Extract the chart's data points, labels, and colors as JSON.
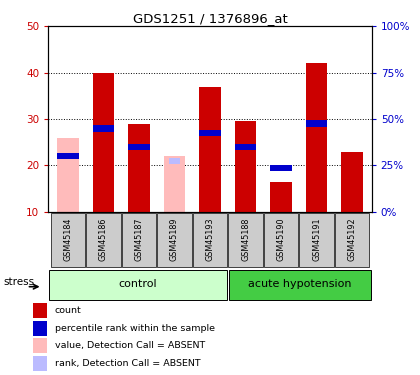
{
  "title": "GDS1251 / 1376896_at",
  "samples": [
    "GSM45184",
    "GSM45186",
    "GSM45187",
    "GSM45189",
    "GSM45193",
    "GSM45188",
    "GSM45190",
    "GSM45191",
    "GSM45192"
  ],
  "n_control": 5,
  "n_acute": 4,
  "red_bars": [
    null,
    40.0,
    29.0,
    null,
    37.0,
    29.5,
    16.5,
    42.0,
    23.0
  ],
  "blue_bars": [
    22.0,
    28.0,
    24.0,
    null,
    27.0,
    24.0,
    19.5,
    29.0,
    null
  ],
  "pink_bars": [
    26.0,
    null,
    null,
    22.0,
    null,
    null,
    null,
    null,
    null
  ],
  "lightblue_bars": [
    22.0,
    null,
    null,
    21.0,
    null,
    null,
    null,
    null,
    null
  ],
  "ylim_left": [
    10,
    50
  ],
  "yticks_left": [
    10,
    20,
    30,
    40,
    50
  ],
  "ytick_labels_left": [
    "10",
    "20",
    "30",
    "40",
    "50"
  ],
  "yticks_right": [
    0,
    25,
    50,
    75,
    100
  ],
  "ytick_labels_right": [
    "0%",
    "25%",
    "50%",
    "75%",
    "100%"
  ],
  "red_color": "#cc0000",
  "blue_color": "#0000cc",
  "pink_color": "#ffbbbb",
  "lightblue_color": "#bbbbff",
  "bar_width": 0.6,
  "stress_label": "stress",
  "control_label": "control",
  "acute_label": "acute hypotension",
  "legend_items": [
    "count",
    "percentile rank within the sample",
    "value, Detection Call = ABSENT",
    "rank, Detection Call = ABSENT"
  ],
  "bg_label": "#cccccc",
  "bg_control_light": "#ccffcc",
  "bg_acute_dark": "#44cc44"
}
